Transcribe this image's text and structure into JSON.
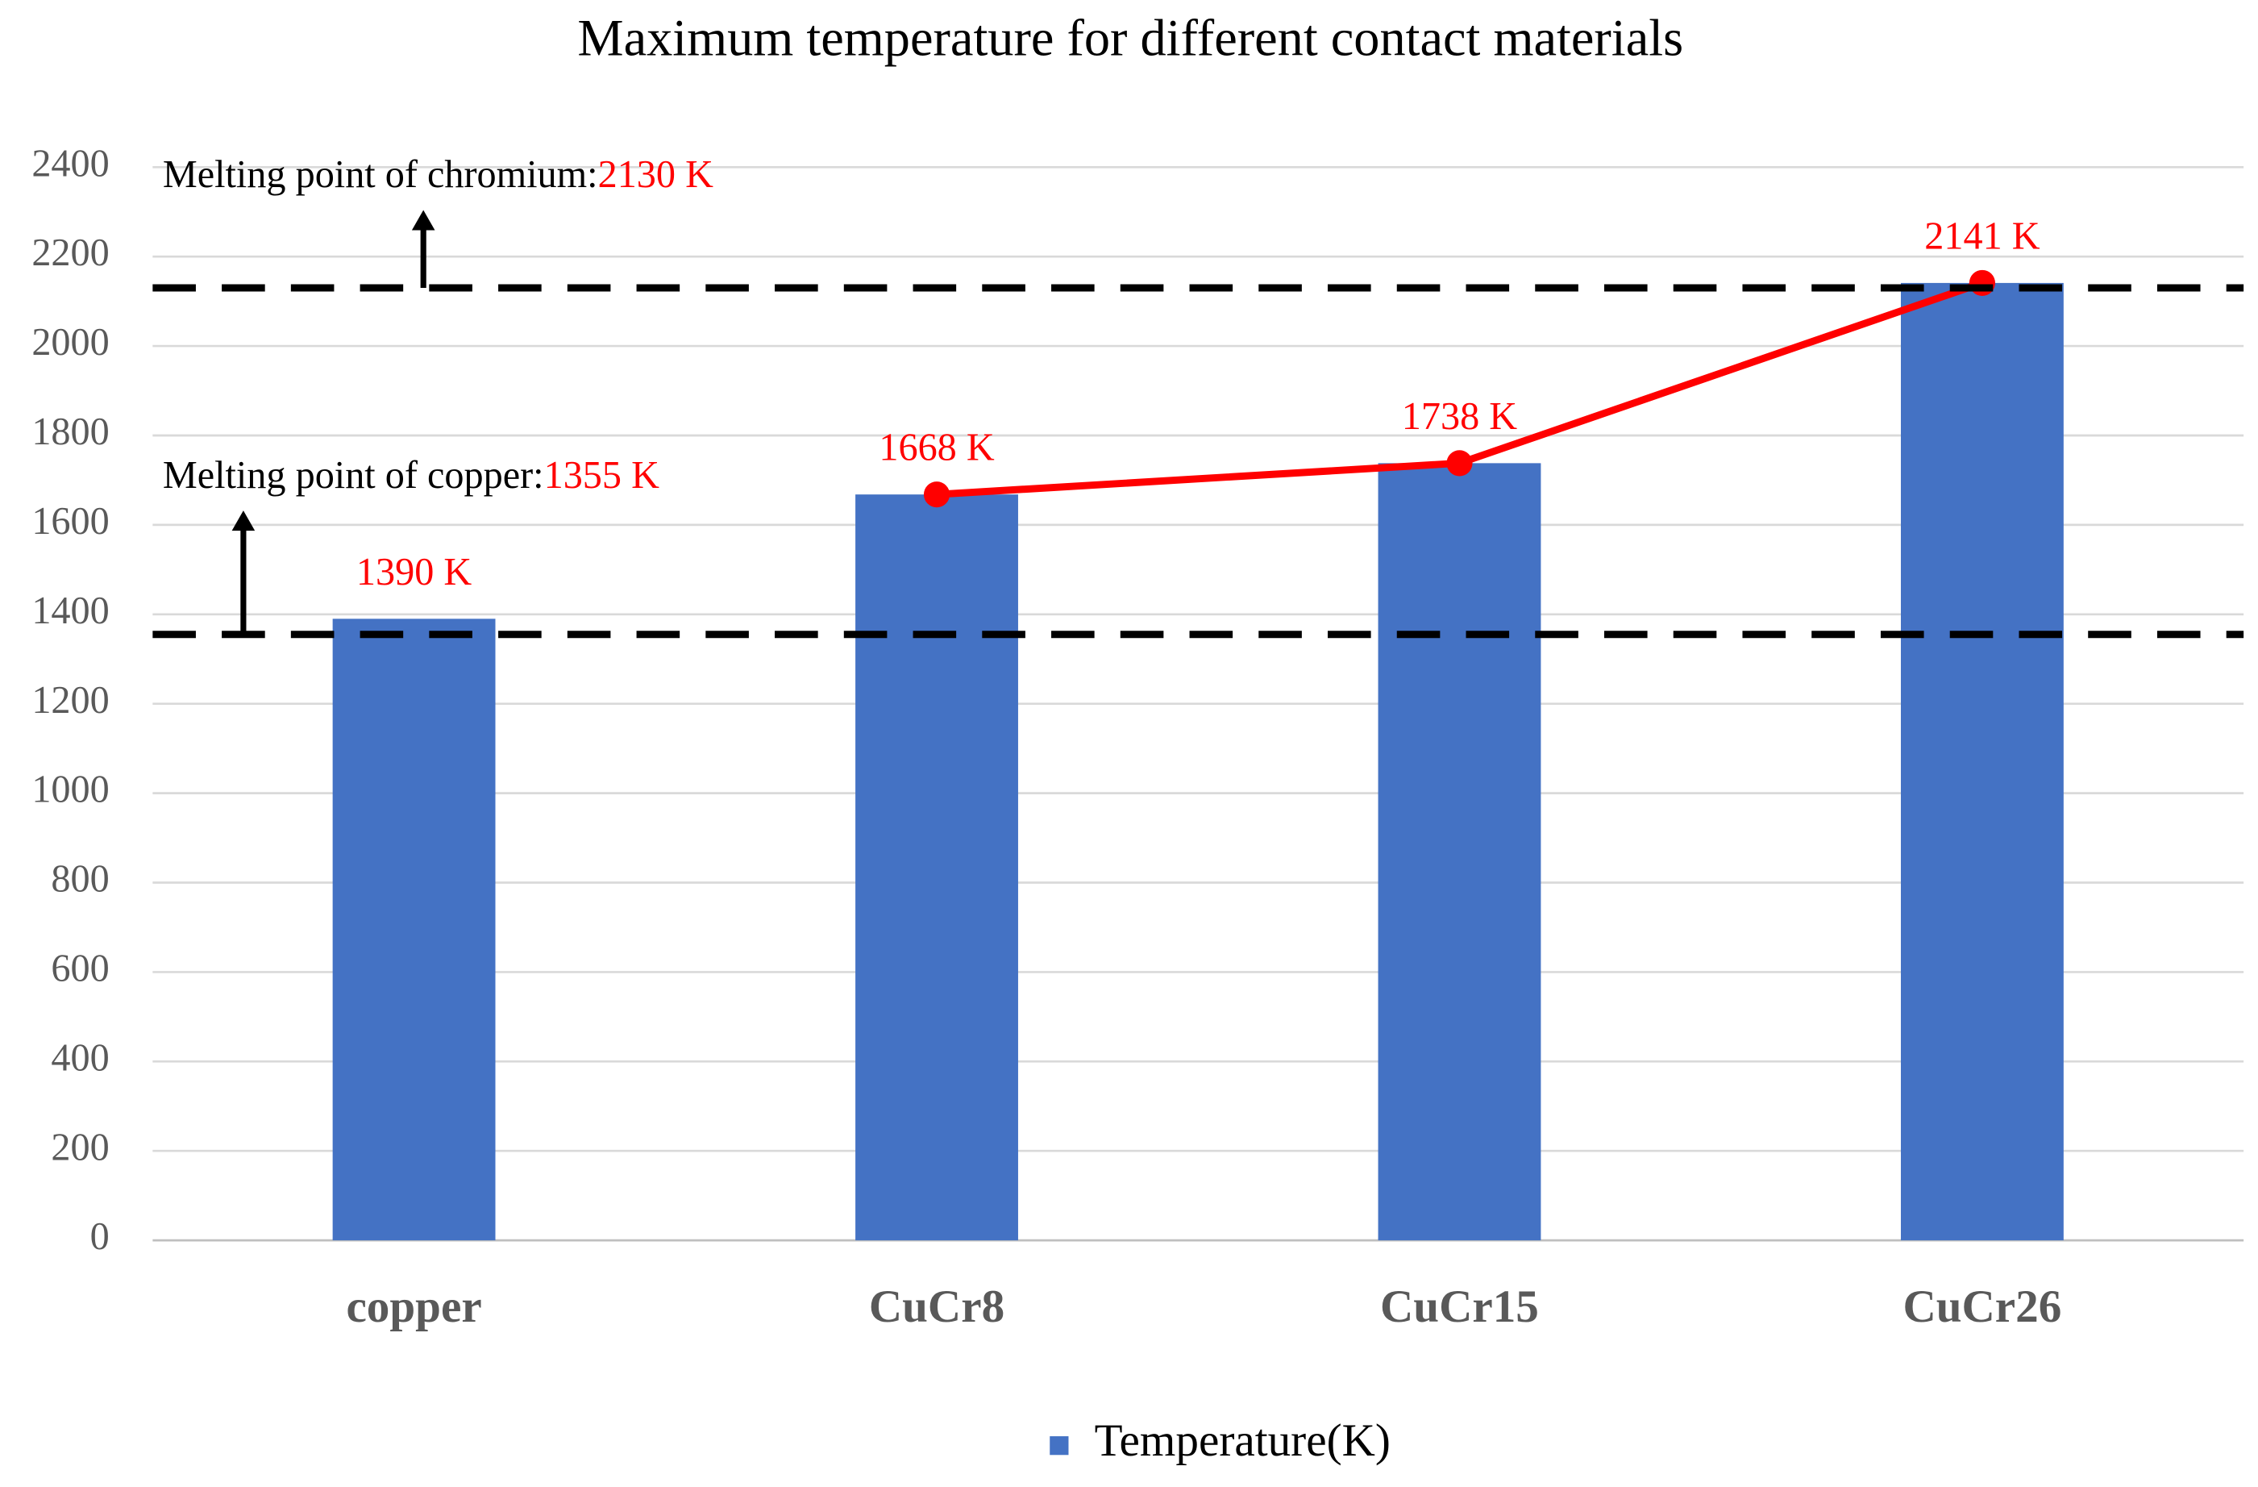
{
  "chart_data": {
    "type": "bar",
    "title": "Maximum temperature for different contact materials",
    "categories": [
      "copper",
      "CuCr8",
      "CuCr15",
      "CuCr26"
    ],
    "series": [
      {
        "name": "Temperature(K)",
        "type": "bar",
        "color": "#4472c4",
        "values": [
          1390,
          1668,
          1738,
          2141
        ],
        "value_labels": [
          "1390 K",
          "1668 K",
          "1738 K",
          "2141 K"
        ]
      },
      {
        "type": "line",
        "color": "#ff0000",
        "values": [
          null,
          1668,
          1738,
          2141
        ]
      }
    ],
    "ylim": [
      0,
      2400
    ],
    "yticks": [
      0,
      200,
      400,
      600,
      800,
      1000,
      1200,
      1400,
      1600,
      1800,
      2000,
      2200,
      2400
    ],
    "grid": true,
    "legend": "bottom",
    "annotations": [
      {
        "text": "Melting point of copper:",
        "value": 1355,
        "value_label": "1355 K"
      },
      {
        "text": "Melting point of chromium:",
        "value": 2130,
        "value_label": "2130 K"
      }
    ]
  }
}
